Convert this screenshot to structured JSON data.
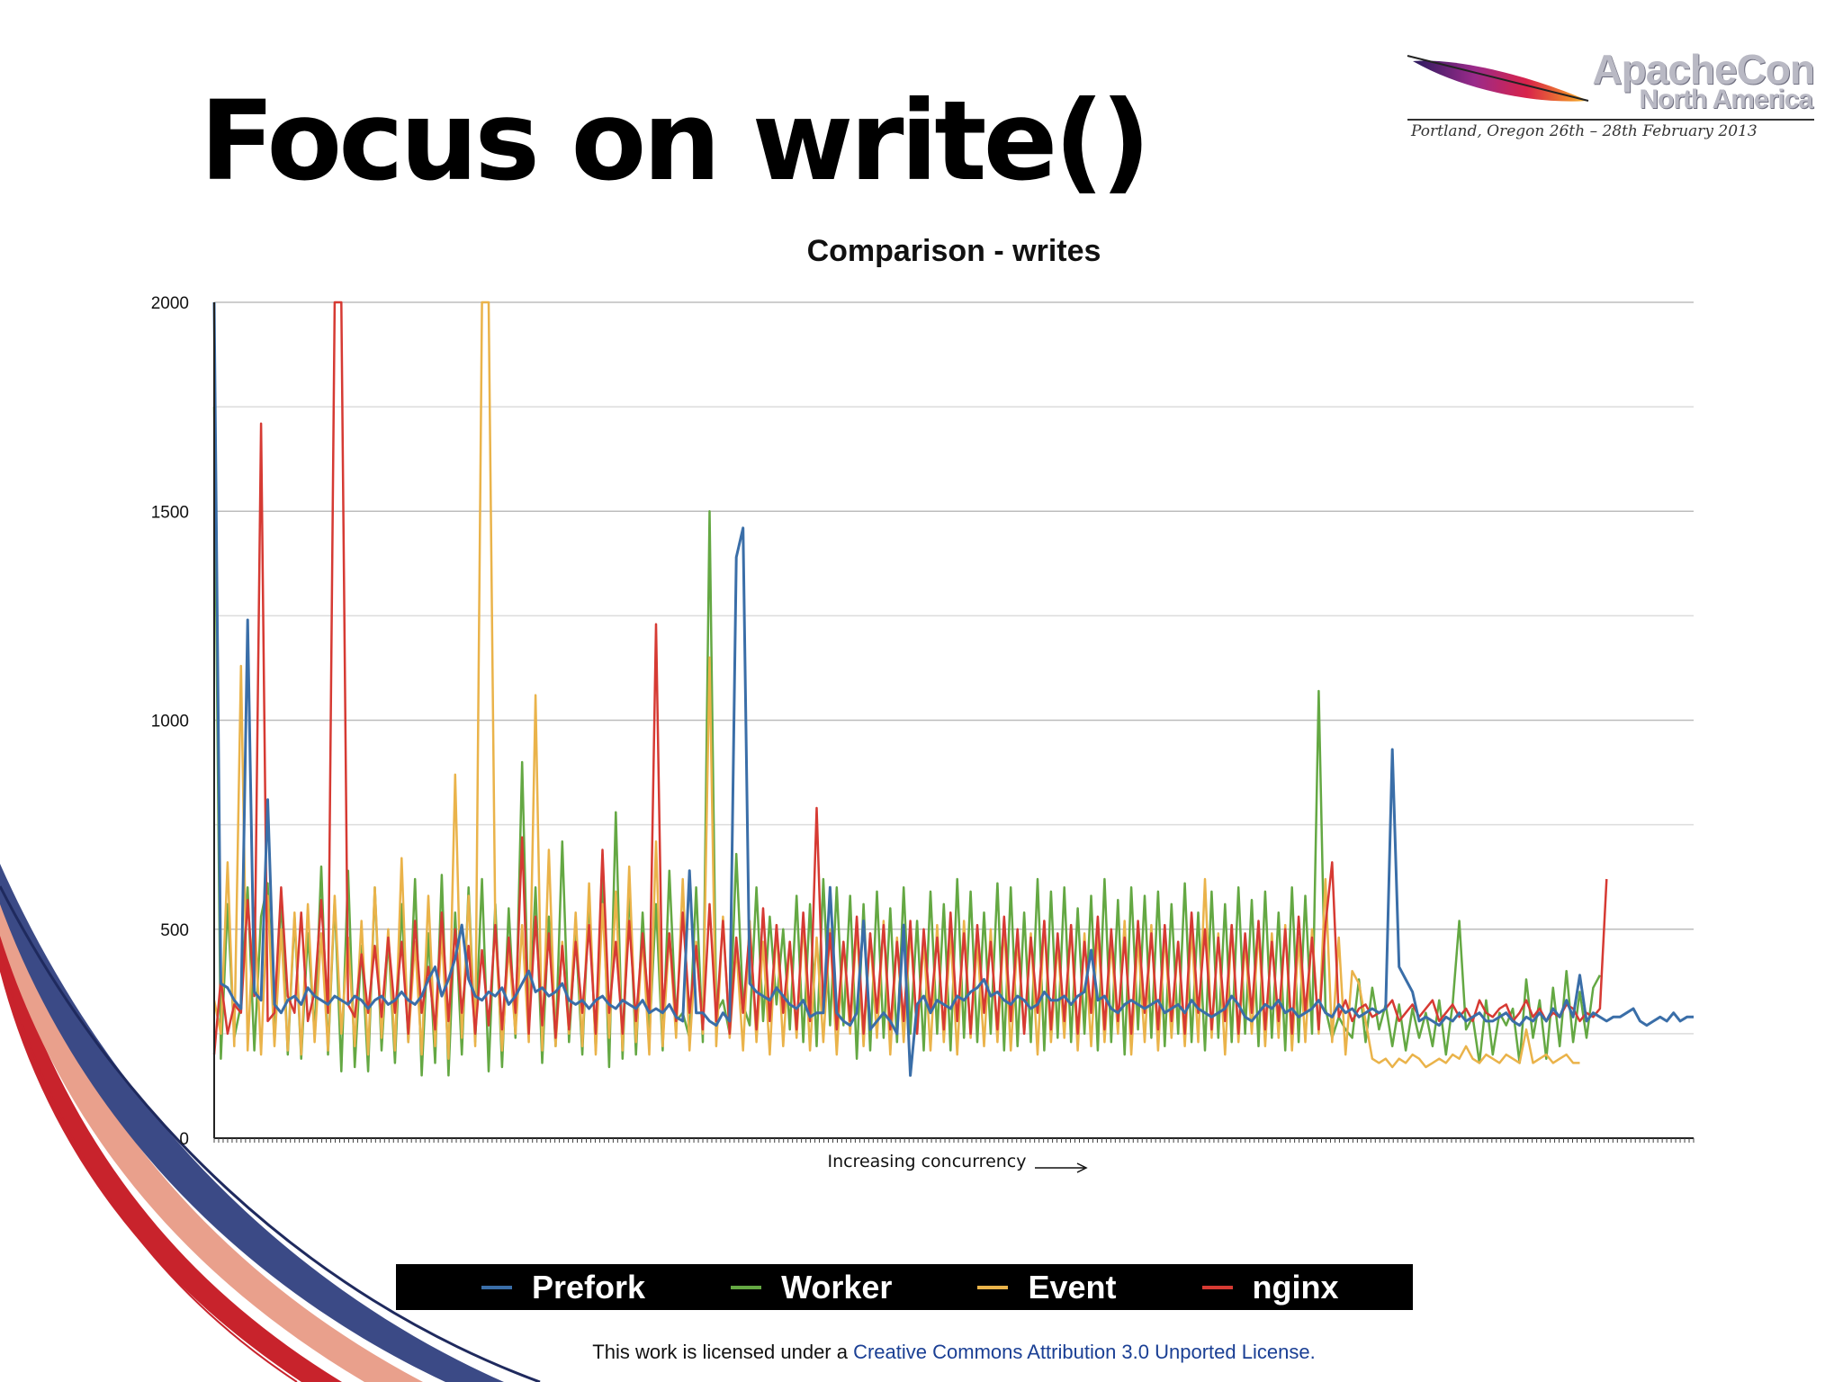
{
  "slide": {
    "title": "Focus on write()",
    "logo_title": "ApacheCon",
    "logo_subtitle": "North America",
    "logo_tagline": "Portland, Oregon 26th – 28th February 2013",
    "license_prefix": "This work is licensed under a ",
    "license_link": "Creative Commons Attribution 3.0 Unported License."
  },
  "colors": {
    "Prefork": "#3a6ea8",
    "Worker": "#64a843",
    "Event": "#eab34a",
    "nginx": "#d63a33",
    "decor_navy": "#1f2a5e",
    "decor_red": "#c8232c",
    "decor_salmon": "#e9a08c"
  },
  "chart_data": {
    "type": "line",
    "title": "Comparison - writes",
    "xlabel": "Increasing concurrency",
    "ylabel": "",
    "ylim": [
      0,
      2000
    ],
    "yticks": [
      0,
      500,
      1000,
      1500,
      2000
    ],
    "grid": true,
    "legend_position": "bottom",
    "x": "sample index 0–219 (unlabelled ticks)",
    "series": [
      {
        "name": "Prefork",
        "values": [
          2000,
          370,
          360,
          330,
          310,
          1240,
          350,
          330,
          810,
          320,
          300,
          330,
          340,
          320,
          360,
          340,
          330,
          320,
          340,
          330,
          320,
          340,
          330,
          310,
          330,
          340,
          320,
          330,
          350,
          330,
          320,
          340,
          380,
          410,
          340,
          380,
          430,
          510,
          380,
          340,
          330,
          350,
          340,
          360,
          320,
          340,
          370,
          400,
          350,
          360,
          340,
          350,
          370,
          330,
          320,
          330,
          310,
          330,
          340,
          320,
          310,
          330,
          320,
          310,
          330,
          300,
          310,
          300,
          320,
          290,
          280,
          640,
          300,
          300,
          280,
          270,
          300,
          280,
          1390,
          1460,
          370,
          350,
          340,
          330,
          360,
          340,
          320,
          310,
          330,
          290,
          300,
          300,
          600,
          300,
          280,
          270,
          300,
          520,
          260,
          280,
          300,
          280,
          250,
          510,
          150,
          320,
          340,
          300,
          330,
          320,
          310,
          340,
          330,
          350,
          360,
          380,
          340,
          350,
          330,
          320,
          340,
          330,
          310,
          320,
          350,
          330,
          330,
          340,
          320,
          340,
          350,
          450,
          330,
          340,
          310,
          300,
          320,
          330,
          320,
          310,
          320,
          330,
          300,
          310,
          320,
          300,
          330,
          310,
          300,
          290,
          300,
          310,
          340,
          320,
          290,
          280,
          300,
          320,
          310,
          330,
          300,
          310,
          290,
          300,
          310,
          330,
          300,
          290,
          320,
          300,
          310,
          290,
          300,
          310,
          300,
          310,
          930,
          410,
          380,
          350,
          280,
          290,
          280,
          270,
          290,
          280,
          300,
          280,
          290,
          300,
          280,
          280,
          290,
          300,
          280,
          270,
          290,
          280,
          300,
          280,
          310,
          290,
          330,
          290,
          390,
          280,
          300,
          290,
          280,
          290,
          290,
          300,
          310,
          280,
          270,
          280,
          290,
          280,
          300,
          280,
          290,
          290
        ]
      },
      {
        "name": "Worker",
        "values": [
          1750,
          190,
          560,
          240,
          320,
          600,
          210,
          530,
          610,
          230,
          580,
          200,
          530,
          190,
          490,
          250,
          650,
          200,
          570,
          160,
          640,
          170,
          460,
          160,
          600,
          210,
          480,
          180,
          560,
          230,
          620,
          150,
          490,
          180,
          630,
          150,
          540,
          200,
          600,
          230,
          620,
          160,
          560,
          170,
          550,
          240,
          900,
          260,
          600,
          180,
          530,
          220,
          710,
          230,
          490,
          200,
          580,
          210,
          640,
          170,
          780,
          190,
          600,
          200,
          540,
          240,
          560,
          210,
          640,
          280,
          300,
          240,
          600,
          230,
          1500,
          300,
          330,
          250,
          680,
          320,
          270,
          600,
          280,
          530,
          320,
          500,
          260,
          580,
          230,
          560,
          220,
          620,
          270,
          600,
          270,
          580,
          190,
          560,
          210,
          590,
          240,
          550,
          230,
          600,
          250,
          520,
          210,
          590,
          250,
          560,
          210,
          620,
          240,
          590,
          230,
          540,
          250,
          610,
          210,
          600,
          220,
          540,
          230,
          620,
          210,
          590,
          240,
          600,
          230,
          550,
          250,
          580,
          210,
          620,
          230,
          570,
          200,
          600,
          260,
          580,
          240,
          590,
          220,
          560,
          250,
          610,
          230,
          540,
          210,
          590,
          240,
          560,
          230,
          600,
          250,
          570,
          220,
          590,
          240,
          540,
          210,
          600,
          230,
          580,
          250,
          1070,
          310,
          240,
          290,
          260,
          240,
          380,
          230,
          360,
          260,
          320,
          220,
          320,
          210,
          310,
          240,
          300,
          220,
          330,
          200,
          320,
          520,
          260,
          290,
          180,
          330,
          200,
          300,
          270,
          310,
          180,
          380,
          240,
          330,
          190,
          360,
          220,
          400,
          230,
          350,
          240,
          360,
          390
        ]
      },
      {
        "name": "Event",
        "values": [
          330,
          250,
          660,
          220,
          1130,
          210,
          550,
          200,
          580,
          220,
          500,
          210,
          540,
          200,
          560,
          230,
          490,
          210,
          580,
          250,
          480,
          220,
          520,
          200,
          600,
          240,
          500,
          210,
          670,
          230,
          470,
          200,
          580,
          220,
          490,
          190,
          870,
          240,
          580,
          220,
          2000,
          2000,
          500,
          210,
          460,
          250,
          510,
          230,
          1060,
          210,
          690,
          220,
          470,
          250,
          540,
          220,
          610,
          200,
          560,
          240,
          590,
          210,
          650,
          230,
          480,
          200,
          710,
          220,
          490,
          240,
          620,
          210,
          470,
          250,
          1150,
          220,
          530,
          240,
          460,
          210,
          520,
          230,
          470,
          200,
          510,
          220,
          470,
          240,
          520,
          210,
          480,
          230,
          500,
          200,
          470,
          250,
          510,
          220,
          490,
          240,
          520,
          200,
          480,
          230,
          500,
          250,
          470,
          210,
          510,
          230,
          490,
          200,
          520,
          240,
          470,
          220,
          500,
          230,
          510,
          210,
          480,
          250,
          490,
          200,
          520,
          230,
          470,
          240,
          510,
          210,
          490,
          220,
          500,
          230,
          470,
          250,
          520,
          200,
          480,
          230,
          510,
          210,
          490,
          240,
          470,
          220,
          500,
          230,
          620,
          240,
          490,
          200,
          510,
          230,
          470,
          250,
          500,
          220,
          490,
          240,
          510,
          210,
          480,
          230,
          500,
          250,
          620,
          230,
          480,
          200,
          400,
          370,
          280,
          190,
          180,
          190,
          170,
          190,
          180,
          200,
          190,
          170,
          180,
          190,
          180,
          200,
          190,
          220,
          190,
          180,
          200,
          190,
          180,
          200,
          190,
          180,
          260,
          180,
          190,
          200,
          180,
          190,
          200,
          180,
          180
        ]
      },
      {
        "name": "nginx",
        "values": [
          200,
          380,
          250,
          320,
          300,
          570,
          340,
          1710,
          280,
          300,
          600,
          340,
          300,
          540,
          280,
          350,
          570,
          300,
          2000,
          2000,
          320,
          290,
          440,
          300,
          460,
          290,
          480,
          300,
          470,
          250,
          520,
          300,
          410,
          260,
          540,
          280,
          500,
          300,
          460,
          250,
          450,
          270,
          510,
          260,
          480,
          300,
          720,
          250,
          530,
          270,
          490,
          240,
          460,
          260,
          470,
          300,
          510,
          250,
          690,
          300,
          470,
          250,
          520,
          280,
          490,
          300,
          1230,
          300,
          490,
          280,
          540,
          300,
          460,
          260,
          560,
          280,
          520,
          250,
          480,
          300,
          500,
          260,
          550,
          280,
          510,
          300,
          470,
          260,
          540,
          280,
          790,
          300,
          490,
          260,
          470,
          280,
          530,
          250,
          490,
          300,
          510,
          260,
          470,
          280,
          520,
          250,
          500,
          300,
          480,
          260,
          540,
          280,
          490,
          250,
          510,
          300,
          470,
          260,
          530,
          280,
          500,
          250,
          480,
          300,
          520,
          260,
          490,
          280,
          510,
          250,
          470,
          300,
          530,
          260,
          500,
          280,
          480,
          250,
          520,
          300,
          490,
          260,
          510,
          280,
          470,
          250,
          540,
          300,
          500,
          260,
          480,
          280,
          510,
          250,
          490,
          300,
          520,
          260,
          470,
          280,
          500,
          250,
          530,
          300,
          480,
          260,
          510,
          660,
          290,
          330,
          280,
          310,
          320,
          290,
          300,
          310,
          330,
          280,
          300,
          320,
          290,
          310,
          330,
          280,
          300,
          320,
          290,
          310,
          280,
          330,
          300,
          290,
          310,
          320,
          280,
          300,
          330,
          290,
          310,
          280,
          300,
          290,
          320,
          310,
          280,
          300,
          290,
          310,
          620
        ]
      }
    ]
  }
}
